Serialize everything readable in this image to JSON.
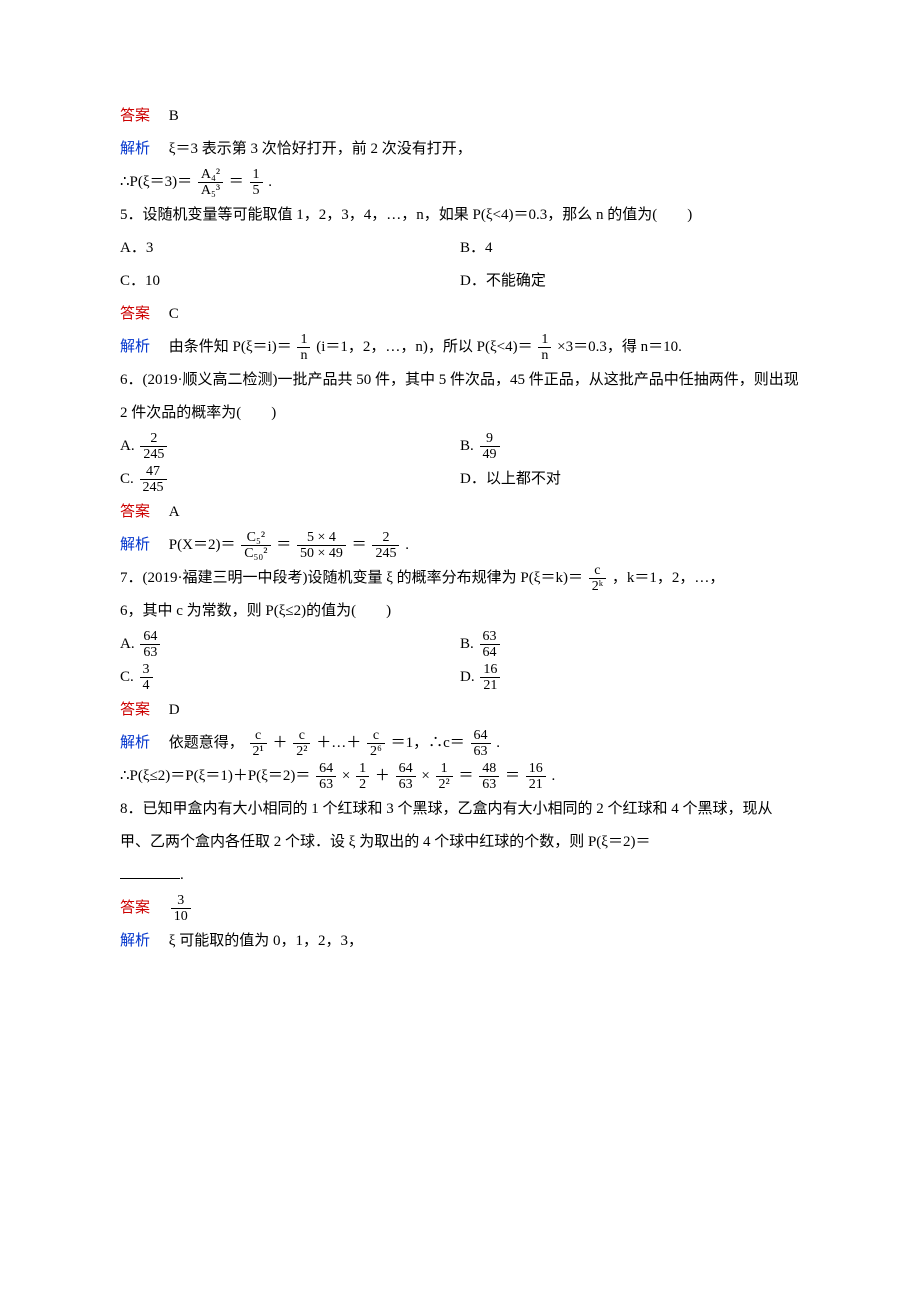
{
  "labels": {
    "answer": "答案",
    "analysis": "解析"
  },
  "q4": {
    "answer": "B",
    "analysis_prefix": "ξ＝3 表示第 3 次恰好打开，前 2 次没有打开，",
    "line2_lead": "∴P(ξ＝3)＝",
    "frac1_num": "A₄²",
    "frac1_den": "A₅³",
    "eq1": "＝",
    "frac2_num": "1",
    "frac2_den": "5",
    "tail": "."
  },
  "q5": {
    "stem": "5．设随机变量等可能取值 1，2，3，4，…，n，如果 P(ξ<4)＝0.3，那么 n 的值为(　　)",
    "A": "A．3",
    "B": "B．4",
    "C": "C．10",
    "D": "D．不能确定",
    "answer": "C",
    "analysis_lead": "由条件知 P(ξ＝i)＝",
    "frac1_num": "1",
    "frac1_den": "n",
    "mid1": "(i＝1，2，…，n)，所以 P(ξ<4)＝",
    "frac2_num": "1",
    "frac2_den": "n",
    "tail": "×3＝0.3，得 n＝10."
  },
  "q6": {
    "stem": "6．(2019·顺义高二检测)一批产品共 50 件，其中 5 件次品，45 件正品，从这批产品中任抽两件，则出现 2 件次品的概率为(　　)",
    "A_label": "A.",
    "A_num": "2",
    "A_den": "245",
    "B_label": "B.",
    "B_num": "9",
    "B_den": "49",
    "C_label": "C.",
    "C_num": "47",
    "C_den": "245",
    "D": "D．以上都不对",
    "answer": "A",
    "analysis_lead": "P(X＝2)＝",
    "f1_num": "C₅²",
    "f1_den": "C₅₀²",
    "eq1": "＝",
    "f2_num": "5 × 4",
    "f2_den": "50 × 49",
    "eq2": "＝",
    "f3_num": "2",
    "f3_den": "245",
    "tail": "."
  },
  "q7": {
    "stem_a": "7．(2019·福建三明一中段考)设随机变量 ξ 的概率分布规律为 P(ξ＝k)＝",
    "stem_frac_num": "c",
    "stem_frac_den": "2ᵏ",
    "stem_b": "，k＝1，2，…，",
    "stem_c": "6，其中 c 为常数，则 P(ξ≤2)的值为(　　)",
    "A_label": "A.",
    "A_num": "64",
    "A_den": "63",
    "B_label": "B.",
    "B_num": "63",
    "B_den": "64",
    "C_label": "C.",
    "C_num": "3",
    "C_den": "4",
    "D_label": "D.",
    "D_num": "16",
    "D_den": "21",
    "answer": "D",
    "analysis_lead": "依题意得，",
    "t1_num": "c",
    "t1_den": "2¹",
    "plus1": "＋",
    "t2_num": "c",
    "t2_den": "2²",
    "plus2": "＋…＋",
    "t3_num": "c",
    "t3_den": "2⁶",
    "eqc": "＝1，∴c＝",
    "cr_num": "64",
    "cr_den": "63",
    "dot1": ".",
    "line2_lead": "∴P(ξ≤2)＝P(ξ＝1)＋P(ξ＝2)＝",
    "b1_num": "64",
    "b1_den": "63",
    "times1": "×",
    "b2_num": "1",
    "b2_den": "2",
    "plus3": "＋",
    "b3_num": "64",
    "b3_den": "63",
    "times2": "×",
    "b4_num": "1",
    "b4_den": "2²",
    "eq3": "＝",
    "b5_num": "48",
    "b5_den": "63",
    "eq4": "＝",
    "b6_num": "16",
    "b6_den": "21",
    "dot2": "."
  },
  "q8": {
    "stem": "8．已知甲盒内有大小相同的 1 个红球和 3 个黑球，乙盒内有大小相同的 2 个红球和 4 个黑球，现从甲、乙两个盒内各任取 2 个球．设 ξ 为取出的 4 个球中红球的个数，则 P(ξ＝2)＝",
    "tail": ".",
    "ans_num": "3",
    "ans_den": "10",
    "analysis": "ξ 可能取的值为 0，1，2，3，"
  }
}
